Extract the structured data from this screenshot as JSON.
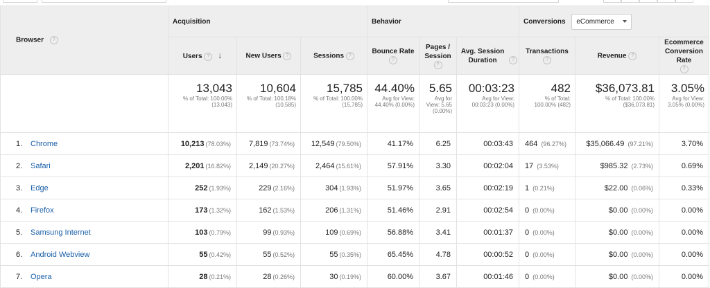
{
  "header": {
    "browser_label": "Browser",
    "groups": {
      "acquisition": "Acquisition",
      "behavior": "Behavior",
      "conversions": "Conversions"
    },
    "conversions_select": "eCommerce",
    "columns": {
      "users": "Users",
      "new_users": "New Users",
      "sessions": "Sessions",
      "bounce_rate": "Bounce Rate",
      "pages_session": "Pages / Session",
      "avg_session_duration": "Avg. Session Duration",
      "transactions": "Transactions",
      "revenue": "Revenue",
      "ecommerce_conversion_rate": "Ecommerce Conversion Rate"
    }
  },
  "totals": {
    "users": {
      "value": "13,043",
      "sub": "% of Total: 100.00% (13,043)"
    },
    "new_users": {
      "value": "10,604",
      "sub": "% of Total: 100.18% (10,585)"
    },
    "sessions": {
      "value": "15,785",
      "sub": "% of Total: 100.00% (15,785)"
    },
    "bounce_rate": {
      "value": "44.40%",
      "sub": "Avg for View: 44.40% (0.00%)"
    },
    "pages_session": {
      "value": "5.65",
      "sub": "Avg for View: 5.65 (0.00%)"
    },
    "avg_session_duration": {
      "value": "00:03:23",
      "sub": "Avg for View: 00:03:23 (0.00%)"
    },
    "transactions": {
      "value": "482",
      "sub": "% of Total: 100.00% (482)"
    },
    "revenue": {
      "value": "$36,073.81",
      "sub": "% of Total: 100.00% ($36,073.81)"
    },
    "ecommerce_conversion_rate": {
      "value": "3.05%",
      "sub": "Avg for View: 3.05% (0.00%)"
    }
  },
  "rows": [
    {
      "num": "1.",
      "browser": "Chrome",
      "users": "10,213",
      "users_pct": "(78.03%)",
      "new_users": "7,819",
      "new_users_pct": "(73.74%)",
      "sessions": "12,549",
      "sessions_pct": "(79.50%)",
      "bounce_rate": "41.17%",
      "pages_session": "6.25",
      "duration": "00:03:43",
      "transactions": "464",
      "transactions_pct": "(96.27%)",
      "revenue": "$35,066.49",
      "revenue_pct": "(97.21%)",
      "conv_rate": "3.70%"
    },
    {
      "num": "2.",
      "browser": "Safari",
      "users": "2,201",
      "users_pct": "(16.82%)",
      "new_users": "2,149",
      "new_users_pct": "(20.27%)",
      "sessions": "2,464",
      "sessions_pct": "(15.61%)",
      "bounce_rate": "57.91%",
      "pages_session": "3.30",
      "duration": "00:02:04",
      "transactions": "17",
      "transactions_pct": "(3.53%)",
      "revenue": "$985.32",
      "revenue_pct": "(2.73%)",
      "conv_rate": "0.69%"
    },
    {
      "num": "3.",
      "browser": "Edge",
      "users": "252",
      "users_pct": "(1.93%)",
      "new_users": "229",
      "new_users_pct": "(2.16%)",
      "sessions": "304",
      "sessions_pct": "(1.93%)",
      "bounce_rate": "51.97%",
      "pages_session": "3.65",
      "duration": "00:02:19",
      "transactions": "1",
      "transactions_pct": "(0.21%)",
      "revenue": "$22.00",
      "revenue_pct": "(0.06%)",
      "conv_rate": "0.33%"
    },
    {
      "num": "4.",
      "browser": "Firefox",
      "users": "173",
      "users_pct": "(1.32%)",
      "new_users": "162",
      "new_users_pct": "(1.53%)",
      "sessions": "206",
      "sessions_pct": "(1.31%)",
      "bounce_rate": "51.46%",
      "pages_session": "2.91",
      "duration": "00:02:54",
      "transactions": "0",
      "transactions_pct": "(0.00%)",
      "revenue": "$0.00",
      "revenue_pct": "(0.00%)",
      "conv_rate": "0.00%"
    },
    {
      "num": "5.",
      "browser": "Samsung Internet",
      "users": "103",
      "users_pct": "(0.79%)",
      "new_users": "99",
      "new_users_pct": "(0.93%)",
      "sessions": "109",
      "sessions_pct": "(0.69%)",
      "bounce_rate": "56.88%",
      "pages_session": "3.41",
      "duration": "00:01:37",
      "transactions": "0",
      "transactions_pct": "(0.00%)",
      "revenue": "$0.00",
      "revenue_pct": "(0.00%)",
      "conv_rate": "0.00%"
    },
    {
      "num": "6.",
      "browser": "Android Webview",
      "users": "55",
      "users_pct": "(0.42%)",
      "new_users": "55",
      "new_users_pct": "(0.52%)",
      "sessions": "55",
      "sessions_pct": "(0.35%)",
      "bounce_rate": "65.45%",
      "pages_session": "4.78",
      "duration": "00:00:52",
      "transactions": "0",
      "transactions_pct": "(0.00%)",
      "revenue": "$0.00",
      "revenue_pct": "(0.00%)",
      "conv_rate": "0.00%"
    },
    {
      "num": "7.",
      "browser": "Opera",
      "users": "28",
      "users_pct": "(0.21%)",
      "new_users": "28",
      "new_users_pct": "(0.26%)",
      "sessions": "30",
      "sessions_pct": "(0.19%)",
      "bounce_rate": "60.00%",
      "pages_session": "3.67",
      "duration": "00:01:46",
      "transactions": "0",
      "transactions_pct": "(0.00%)",
      "revenue": "$0.00",
      "revenue_pct": "(0.00%)",
      "conv_rate": "0.00%"
    }
  ]
}
